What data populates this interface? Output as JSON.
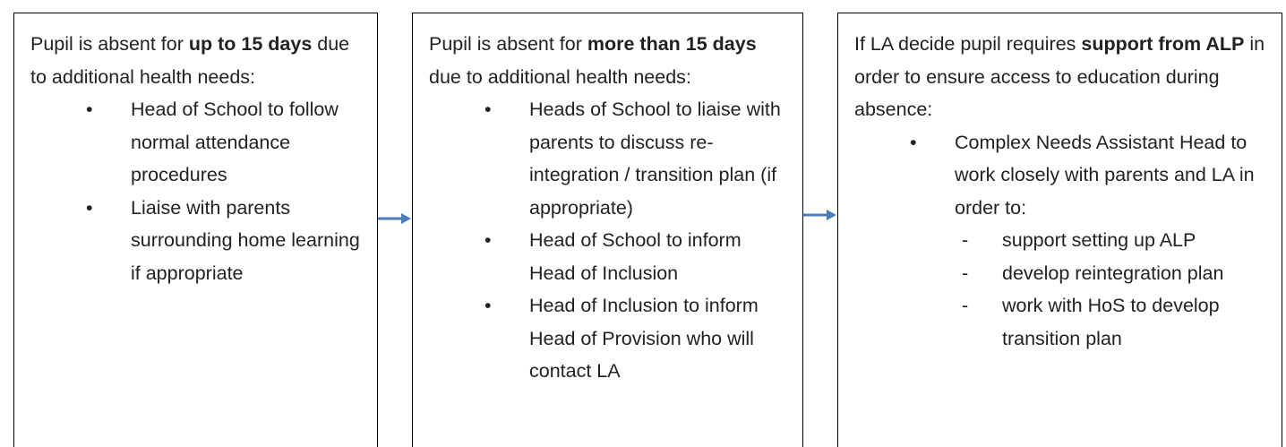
{
  "boxes": [
    {
      "intro": [
        "Pupil is absent for ",
        "up to 15 days",
        " due to additional health needs:"
      ],
      "bullets": [
        {
          "text": "Head of School to follow normal attendance procedures"
        },
        {
          "text": "Liaise with parents surrounding home learning if appropriate"
        }
      ]
    },
    {
      "intro": [
        "Pupil is absent for ",
        "more than 15 days",
        " due to additional health needs:"
      ],
      "bullets": [
        {
          "text": "Heads of School to liaise with parents to discuss re-integration / transition plan (if appropriate)"
        },
        {
          "text": "Head of School to inform Head of Inclusion"
        },
        {
          "text": "Head of Inclusion to inform Head of Provision who will contact LA"
        }
      ]
    },
    {
      "intro": [
        "If LA decide pupil requires ",
        "support from ALP",
        " in order to ensure access to education during absence:"
      ],
      "bullets": [
        {
          "text": "Complex Needs Assistant Head to work closely with parents and LA in order to:",
          "subs": [
            "support setting up ALP",
            "develop reintegration plan",
            "work with HoS to develop transition plan"
          ]
        }
      ]
    }
  ]
}
